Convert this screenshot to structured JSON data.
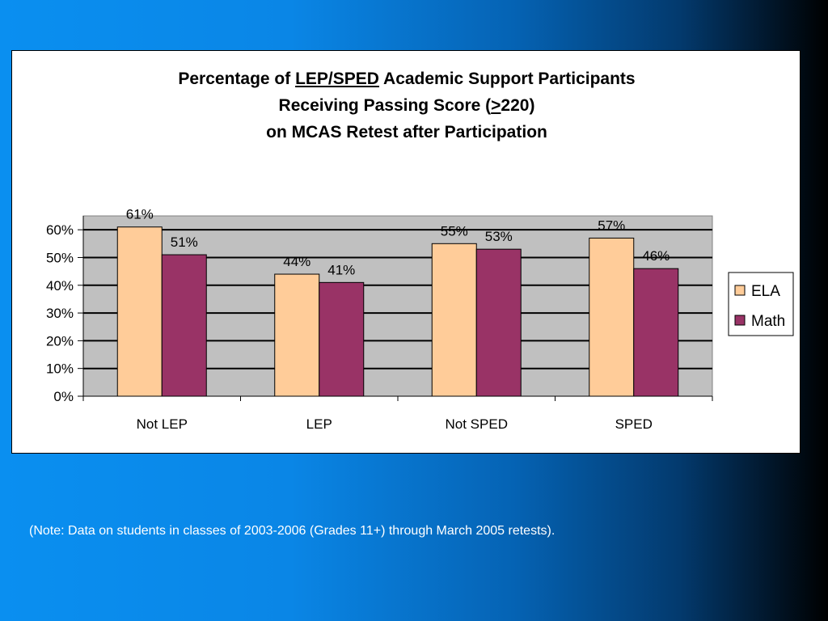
{
  "chart_data": {
    "type": "bar",
    "title": {
      "line1_pre": "Percentage of ",
      "line1_underlined": "LEP/SPED",
      "line1_post": " Academic Support Participants",
      "line2_pre": "Receiving Passing Score (",
      "line2_underlined": ">",
      "line2_post": "220)",
      "line3": "on MCAS Retest after Participation"
    },
    "categories": [
      "Not LEP",
      "LEP",
      "Not SPED",
      "SPED"
    ],
    "series": [
      {
        "name": "ELA",
        "values": [
          61,
          44,
          55,
          57
        ],
        "labels": [
          "61%",
          "44%",
          "55%",
          "57%"
        ],
        "color": "#ffcc99"
      },
      {
        "name": "Math",
        "values": [
          51,
          41,
          53,
          46
        ],
        "labels": [
          "51%",
          "41%",
          "53%",
          "46%"
        ],
        "color": "#993366"
      }
    ],
    "y_ticks": [
      "0%",
      "10%",
      "20%",
      "30%",
      "40%",
      "50%",
      "60%"
    ],
    "ylim": [
      0,
      65
    ],
    "plot_background": "#c0c0c0",
    "grid": true,
    "legend_position": "right"
  },
  "footnote": "(Note: Data on students in classes of 2003-2006 (Grades 11+) through March 2005 retests)."
}
